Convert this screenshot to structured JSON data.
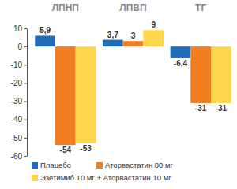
{
  "chart_data": {
    "type": "bar",
    "categories": [
      "ЛПНП",
      "ЛПВП",
      "ТГ"
    ],
    "series": [
      {
        "name": "Плацебо",
        "color": "#1f6cb8",
        "values": [
          5.9,
          3.7,
          -6.4
        ],
        "value_labels": [
          "5,9",
          "3,7",
          "-6,4"
        ]
      },
      {
        "name": "Аторвастатин 80 мг",
        "color": "#f37d21",
        "values": [
          -54,
          3,
          -31
        ]
      },
      {
        "name": "Эзетимиб 10 мг + Аторвастатин 10 мг",
        "color": "#fdd64b",
        "values": [
          -53,
          9,
          -31
        ]
      }
    ],
    "ylim": [
      -60,
      10
    ],
    "yticks": [
      10,
      0,
      -10,
      -20,
      -30,
      -40,
      -50,
      -60
    ],
    "grid": false,
    "legend": "bottom",
    "data_labels": true
  }
}
